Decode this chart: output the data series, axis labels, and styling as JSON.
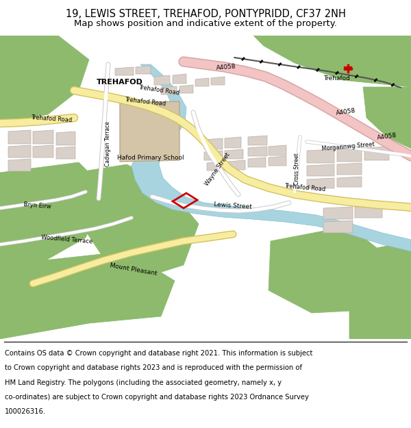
{
  "title_line1": "19, LEWIS STREET, TREHAFOD, PONTYPRIDD, CF37 2NH",
  "title_line2": "Map shows position and indicative extent of the property.",
  "footer_lines": [
    "Contains OS data © Crown copyright and database right 2021. This information is subject",
    "to Crown copyright and database rights 2023 and is reproduced with the permission of",
    "HM Land Registry. The polygons (including the associated geometry, namely x, y",
    "co-ordinates) are subject to Crown copyright and database rights 2023 Ordnance Survey",
    "100026316."
  ],
  "fig_width": 6.0,
  "fig_height": 6.25,
  "dpi": 100,
  "green_color": "#8dba6c",
  "road_yellow_fill": "#f7eda0",
  "road_yellow_edge": "#d4c060",
  "road_white_fill": "#ffffff",
  "road_white_edge": "#cccccc",
  "water_color": "#a8d4e0",
  "building_color": "#d9d0c9",
  "building_edge": "#b8afa8",
  "school_color": "#d4c5a8",
  "pink_road_fill": "#f2c4c4",
  "pink_road_edge": "#d4a0a0",
  "rail_color": "#888888",
  "map_bg": "#f0ede8",
  "title_fontsize": 10.5,
  "subtitle_fontsize": 9.5,
  "footer_fontsize": 7.2,
  "label_fontsize": 6.5,
  "red_color": "#cc0000"
}
